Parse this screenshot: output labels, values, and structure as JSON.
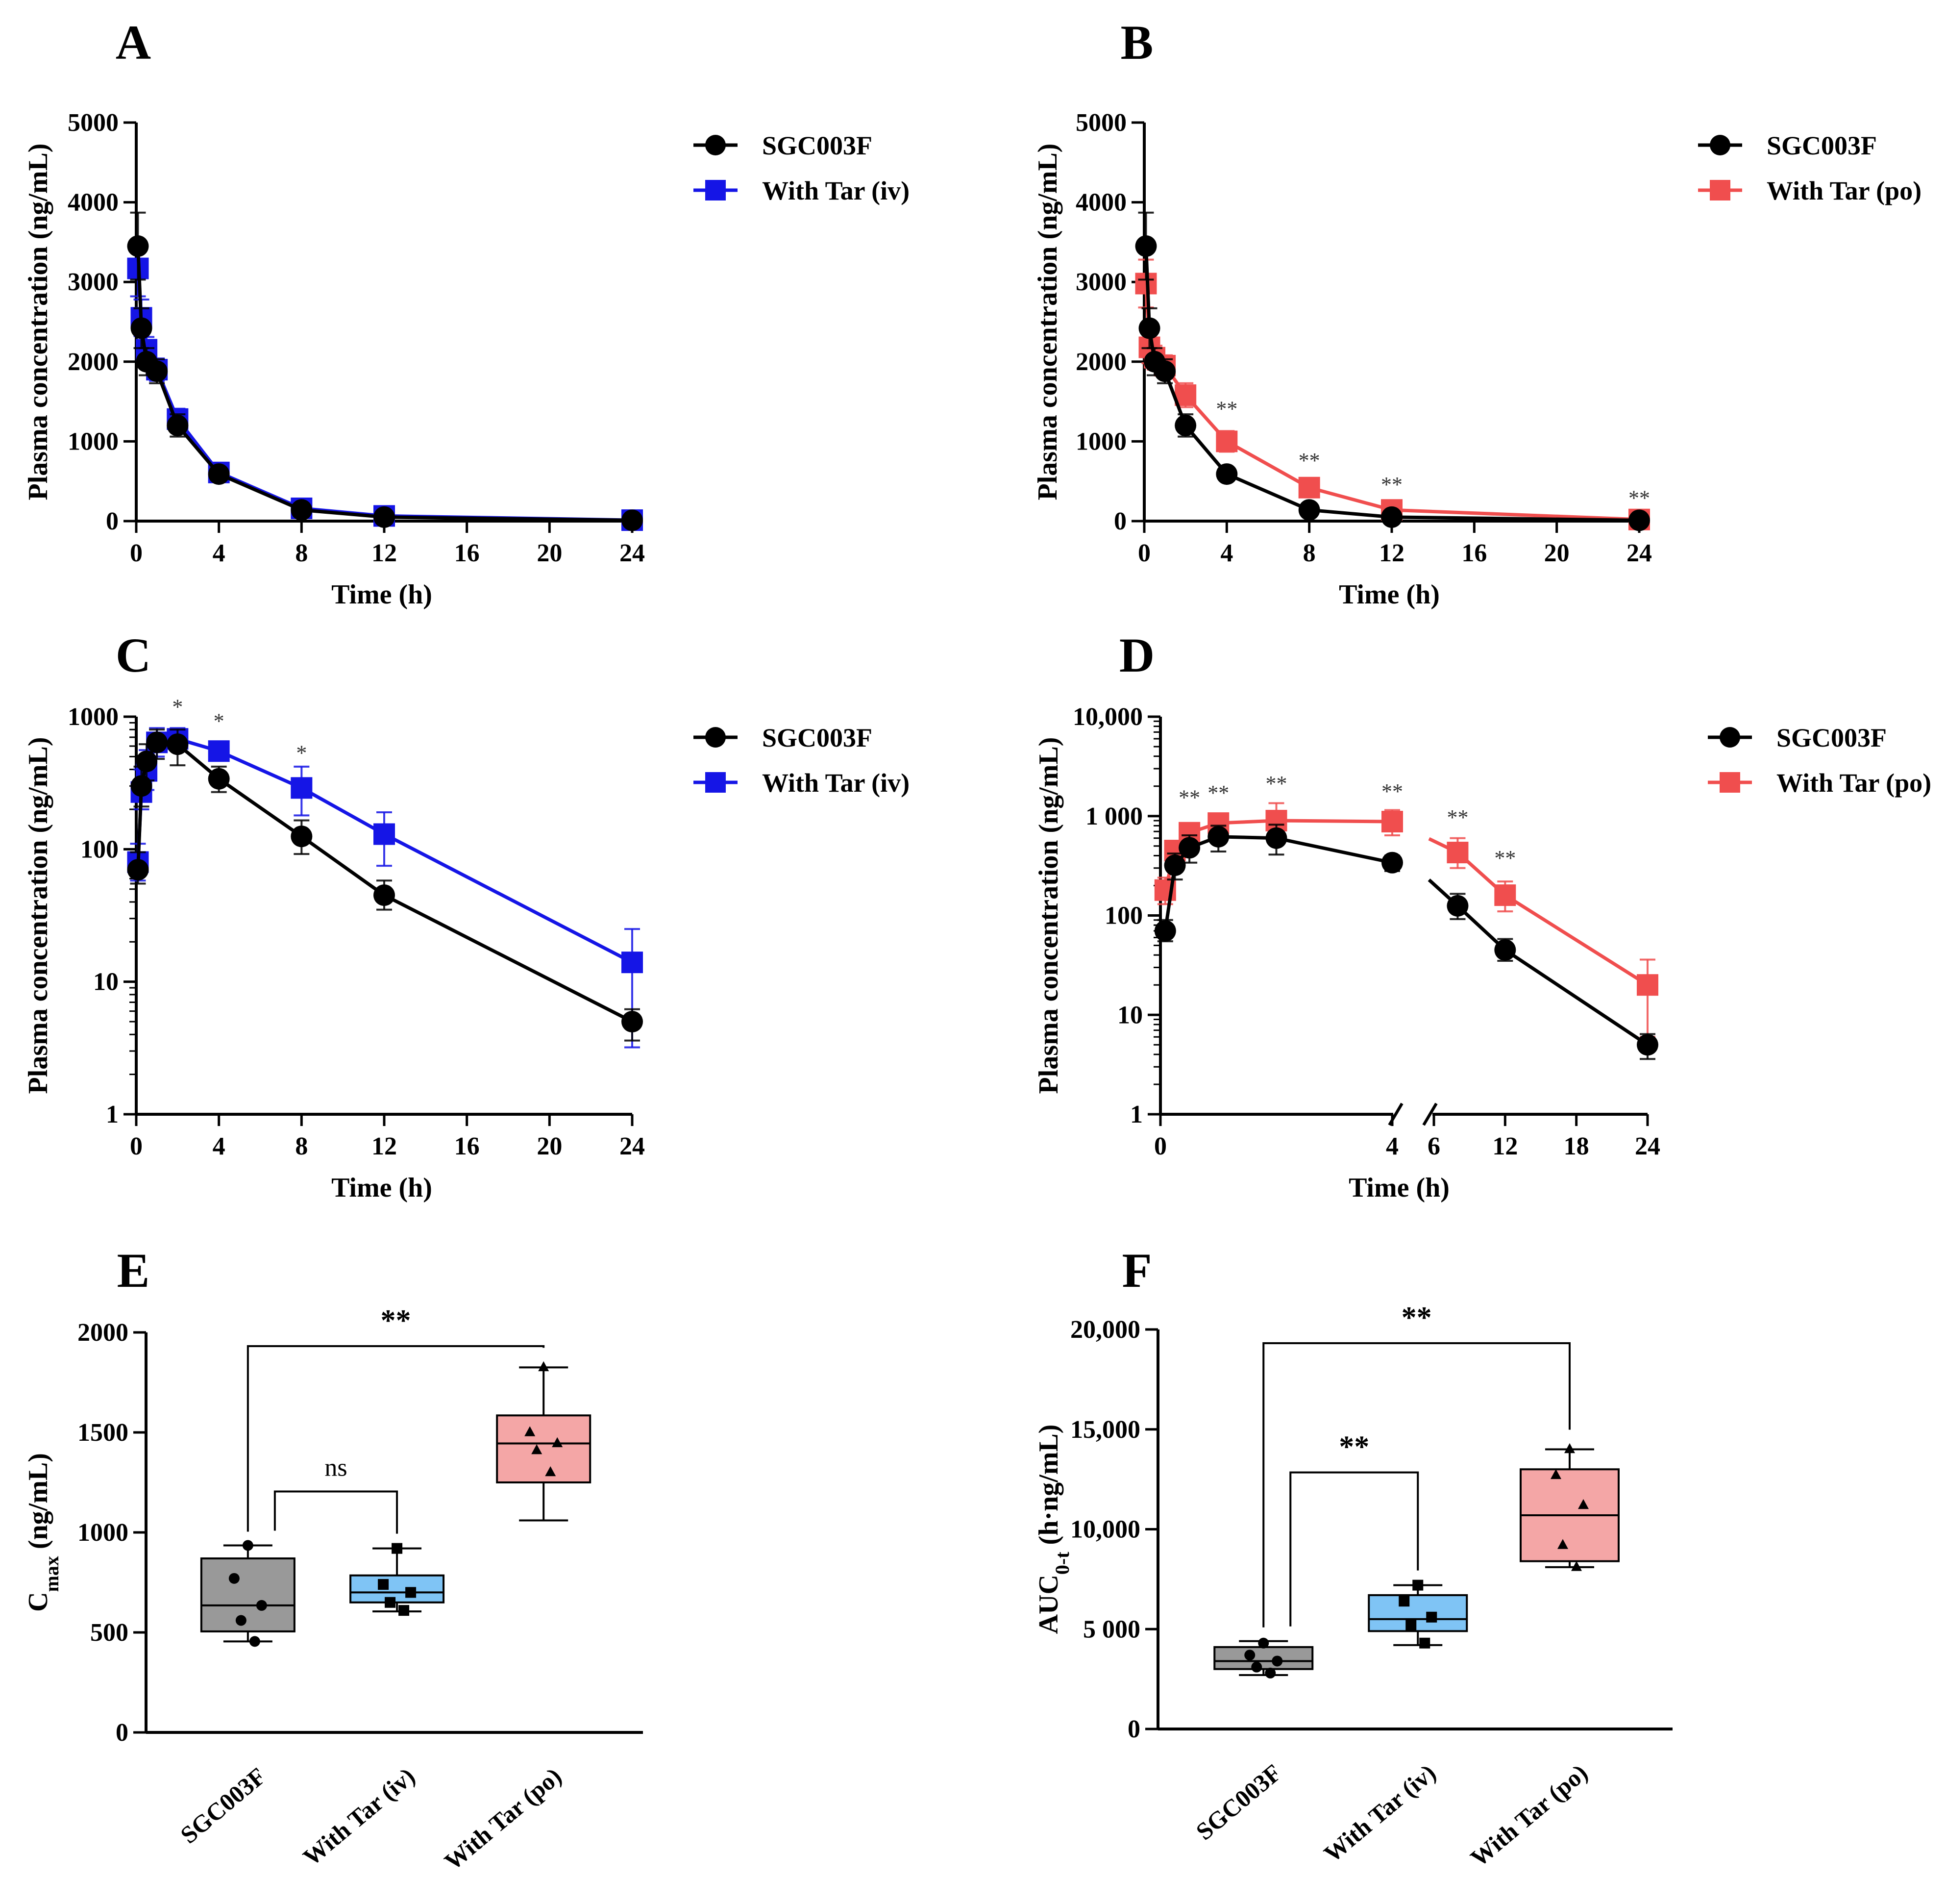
{
  "colors": {
    "sgc": "#000000",
    "iv": "#1515e6",
    "po": "#f04e4e",
    "box_sgc": "#999999",
    "box_iv": "#7fc4f5",
    "box_po": "#f4a6a6"
  },
  "chart_data": [
    {
      "panel": "A",
      "type": "line",
      "xlabel": "Time (h)",
      "ylabel": "Plasma concentration (ng/mL)",
      "xlim": [
        0,
        24
      ],
      "ylim": [
        0,
        5000
      ],
      "yscale": "linear",
      "xticks": [
        "0",
        "4",
        "8",
        "12",
        "16",
        "20",
        "24"
      ],
      "yticks": [
        "0",
        "1000",
        "2000",
        "3000",
        "4000",
        "5000"
      ],
      "series": [
        {
          "name": "SGC003F",
          "marker": "circle",
          "color": "#000000",
          "x": [
            0.083,
            0.25,
            0.5,
            1,
            2,
            4,
            8,
            12,
            24
          ],
          "y": [
            3450,
            2420,
            2000,
            1880,
            1200,
            590,
            140,
            50,
            10
          ],
          "err": [
            420,
            250,
            170,
            150,
            140,
            70,
            30,
            15,
            5
          ]
        },
        {
          "name": "With Tar (iv)",
          "marker": "square",
          "color": "#1515e6",
          "x": [
            0.083,
            0.25,
            0.5,
            1,
            2,
            4,
            8,
            12,
            24
          ],
          "y": [
            3170,
            2550,
            2150,
            1900,
            1280,
            610,
            160,
            65,
            12
          ],
          "err": [
            350,
            230,
            160,
            140,
            130,
            60,
            35,
            20,
            6
          ]
        }
      ],
      "annotations": []
    },
    {
      "panel": "B",
      "type": "line",
      "xlabel": "Time (h)",
      "ylabel": "Plasma concentration (ng/mL)",
      "xlim": [
        0,
        24
      ],
      "ylim": [
        0,
        5000
      ],
      "yscale": "linear",
      "xticks": [
        "0",
        "4",
        "8",
        "12",
        "16",
        "20",
        "24"
      ],
      "yticks": [
        "0",
        "1000",
        "2000",
        "3000",
        "4000",
        "5000"
      ],
      "series": [
        {
          "name": "SGC003F",
          "marker": "circle",
          "color": "#000000",
          "x": [
            0.083,
            0.25,
            0.5,
            1,
            2,
            4,
            8,
            12,
            24
          ],
          "y": [
            3450,
            2420,
            2000,
            1880,
            1200,
            590,
            140,
            50,
            10
          ],
          "err": [
            420,
            250,
            170,
            150,
            140,
            70,
            30,
            15,
            5
          ]
        },
        {
          "name": "With Tar (po)",
          "marker": "square",
          "color": "#f04e4e",
          "x": [
            0.083,
            0.25,
            0.5,
            1,
            2,
            4,
            8,
            12,
            24
          ],
          "y": [
            2980,
            2180,
            2050,
            1950,
            1580,
            1000,
            420,
            140,
            20
          ],
          "err": [
            300,
            200,
            150,
            130,
            150,
            130,
            70,
            40,
            8
          ]
        }
      ],
      "annotations": [
        {
          "x": 4,
          "y": 1320,
          "text": "**"
        },
        {
          "x": 8,
          "y": 670,
          "text": "**"
        },
        {
          "x": 12,
          "y": 370,
          "text": "**"
        },
        {
          "x": 24,
          "y": 200,
          "text": "**"
        }
      ]
    },
    {
      "panel": "C",
      "type": "line",
      "xlabel": "Time (h)",
      "ylabel": "Plasma concentration (ng/mL)",
      "xlim": [
        0,
        24
      ],
      "ylim": [
        1,
        1000
      ],
      "yscale": "log",
      "xticks": [
        "0",
        "4",
        "8",
        "12",
        "16",
        "20",
        "24"
      ],
      "yticks": [
        "1",
        "10",
        "100",
        "1000"
      ],
      "series": [
        {
          "name": "SGC003F",
          "marker": "circle",
          "color": "#000000",
          "x": [
            0.083,
            0.25,
            0.5,
            1,
            2,
            4,
            8,
            12,
            24
          ],
          "y": [
            70,
            300,
            460,
            640,
            620,
            340,
            125,
            45,
            5
          ],
          "errHi": [
            95,
            420,
            620,
            800,
            800,
            420,
            165,
            58,
            6.2
          ],
          "errLo": [
            55,
            210,
            330,
            480,
            430,
            270,
            92,
            35,
            3.6
          ]
        },
        {
          "name": "With Tar (iv)",
          "marker": "square",
          "color": "#1515e6",
          "x": [
            0.083,
            0.25,
            0.5,
            1,
            2,
            4,
            8,
            12,
            24
          ],
          "y": [
            80,
            270,
            390,
            640,
            680,
            550,
            290,
            130,
            14
          ],
          "errHi": [
            110,
            400,
            560,
            820,
            820,
            640,
            420,
            190,
            25
          ],
          "errLo": [
            58,
            200,
            280,
            500,
            560,
            470,
            180,
            75,
            3.2
          ]
        }
      ],
      "annotations": [
        {
          "x": 2,
          "y": 1050,
          "text": "*"
        },
        {
          "x": 4,
          "y": 820,
          "text": "*"
        },
        {
          "x": 8,
          "y": 470,
          "text": "*"
        }
      ]
    },
    {
      "panel": "D",
      "type": "line",
      "xlabel": "Time (h)",
      "ylabel": "Plasma concentration (ng/mL)",
      "ylim": [
        1,
        10000
      ],
      "yscale": "log",
      "xaxis_break": "broken axis between 4 and 6",
      "xticks": [
        "0",
        "4",
        "6",
        "12",
        "18",
        "24"
      ],
      "yticks": [
        "1",
        "10",
        "100",
        "1 000",
        "10,000"
      ],
      "series": [
        {
          "name": "SGC003F",
          "marker": "circle",
          "color": "#000000",
          "x": [
            0.083,
            0.25,
            0.5,
            1,
            2,
            4,
            8,
            12,
            24
          ],
          "y": [
            70,
            320,
            480,
            620,
            600,
            340,
            125,
            45,
            5
          ],
          "errHi": [
            90,
            420,
            640,
            800,
            820,
            400,
            165,
            58,
            6.4
          ],
          "errLo": [
            55,
            230,
            340,
            440,
            410,
            280,
            92,
            35,
            3.6
          ]
        },
        {
          "name": "With Tar (po)",
          "marker": "square",
          "color": "#f04e4e",
          "x": [
            0.083,
            0.25,
            0.5,
            1,
            2,
            4,
            8,
            12,
            24
          ],
          "y": [
            180,
            450,
            680,
            850,
            900,
            880,
            430,
            160,
            20
          ],
          "errHi": [
            240,
            560,
            820,
            1050,
            1350,
            1150,
            600,
            220,
            36
          ],
          "errLo": [
            130,
            360,
            550,
            700,
            620,
            640,
            300,
            110,
            6
          ]
        }
      ],
      "annotations": [
        {
          "x": 0.5,
          "y": 1300,
          "text": "**"
        },
        {
          "x": 1,
          "y": 1450,
          "text": "**"
        },
        {
          "x": 2,
          "y": 1800,
          "text": "**"
        },
        {
          "x": 4,
          "y": 1500,
          "text": "**"
        },
        {
          "x": 8,
          "y": 820,
          "text": "**"
        },
        {
          "x": 12,
          "y": 320,
          "text": "**"
        }
      ]
    },
    {
      "panel": "E",
      "type": "box",
      "ylabel_main": "C",
      "ylabel_sub": "max",
      "ylabel_unit": " (ng/mL)",
      "ylim": [
        0,
        2000
      ],
      "yticks": [
        "0",
        "500",
        "1000",
        "1500",
        "2000"
      ],
      "categories": [
        "SGC003F",
        "With Tar (iv)",
        "With Tar (po)"
      ],
      "boxes": [
        {
          "min": 455,
          "q1": 505,
          "median": 635,
          "q3": 870,
          "max": 935,
          "points": [
            935,
            770,
            635,
            560,
            455
          ]
        },
        {
          "min": 605,
          "q1": 650,
          "median": 700,
          "q3": 785,
          "max": 920,
          "points": [
            920,
            740,
            700,
            650,
            610
          ]
        },
        {
          "min": 1060,
          "q1": 1250,
          "median": 1445,
          "q3": 1585,
          "max": 1825,
          "points": [
            1825,
            1500,
            1445,
            1410,
            1300
          ]
        }
      ],
      "point_markers": [
        "circle",
        "square",
        "triangle"
      ],
      "brackets": [
        {
          "from": 0,
          "to": 2,
          "label": "**"
        },
        {
          "from": 0,
          "to": 1,
          "label": "ns"
        }
      ]
    },
    {
      "panel": "F",
      "type": "box",
      "ylabel_main": "AUC",
      "ylabel_sub": "0-t",
      "ylabel_unit": " (h·ng/mL)",
      "ylim": [
        0,
        20000
      ],
      "yticks": [
        "0",
        "5 000",
        "10,000",
        "15,000",
        "20,000"
      ],
      "categories": [
        "SGC003F",
        "With Tar (iv)",
        "With Tar (po)"
      ],
      "boxes": [
        {
          "min": 2700,
          "q1": 3000,
          "median": 3400,
          "q3": 4100,
          "max": 4400,
          "points": [
            4300,
            3700,
            3400,
            3100,
            2800
          ]
        },
        {
          "min": 4200,
          "q1": 4900,
          "median": 5500,
          "q3": 6700,
          "max": 7200,
          "points": [
            7200,
            6400,
            5600,
            5200,
            4300
          ]
        },
        {
          "min": 8100,
          "q1": 8400,
          "median": 10700,
          "q3": 13000,
          "max": 14000,
          "points": [
            14000,
            12700,
            11200,
            9200,
            8100
          ]
        }
      ],
      "point_markers": [
        "circle",
        "square",
        "triangle"
      ],
      "brackets": [
        {
          "from": 0,
          "to": 2,
          "label": "**"
        },
        {
          "from": 0,
          "to": 1,
          "label": "**"
        }
      ]
    }
  ]
}
